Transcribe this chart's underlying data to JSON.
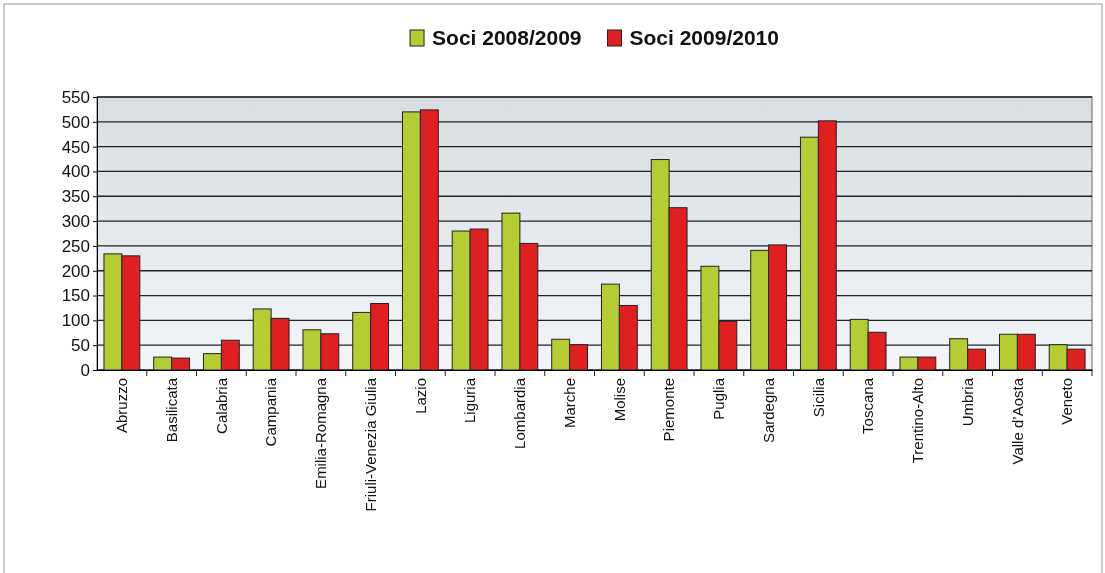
{
  "chart_data": {
    "type": "bar",
    "categories": [
      "Abruzzo",
      "Basilicata",
      "Calabria",
      "Campania",
      "Emilia-Romagna",
      "Friuli-Venezia Giulia",
      "Lazio",
      "Liguria",
      "Lombardia",
      "Marche",
      "Molise",
      "Piemonte",
      "Puglia",
      "Sardegna",
      "Sicilia",
      "Toscana",
      "Trentino-Alto",
      "Umbria",
      "Valle d’Aosta",
      "Veneto"
    ],
    "series": [
      {
        "name": "Soci 2008/2009",
        "color": "#b5cc33",
        "values": [
          234,
          26,
          33,
          123,
          81,
          116,
          520,
          280,
          316,
          62,
          173,
          424,
          209,
          241,
          469,
          102,
          26,
          63,
          72,
          51
        ]
      },
      {
        "name": "Soci 2009/2010",
        "color": "#e02020",
        "values": [
          230,
          24,
          60,
          104,
          73,
          134,
          524,
          284,
          255,
          51,
          130,
          327,
          98,
          252,
          502,
          76,
          26,
          42,
          72,
          42
        ]
      }
    ],
    "ylim": [
      0,
      550
    ],
    "yticks": [
      0,
      50,
      100,
      150,
      200,
      250,
      300,
      350,
      400,
      450,
      500,
      550
    ],
    "grid": "y",
    "legend": "top"
  }
}
